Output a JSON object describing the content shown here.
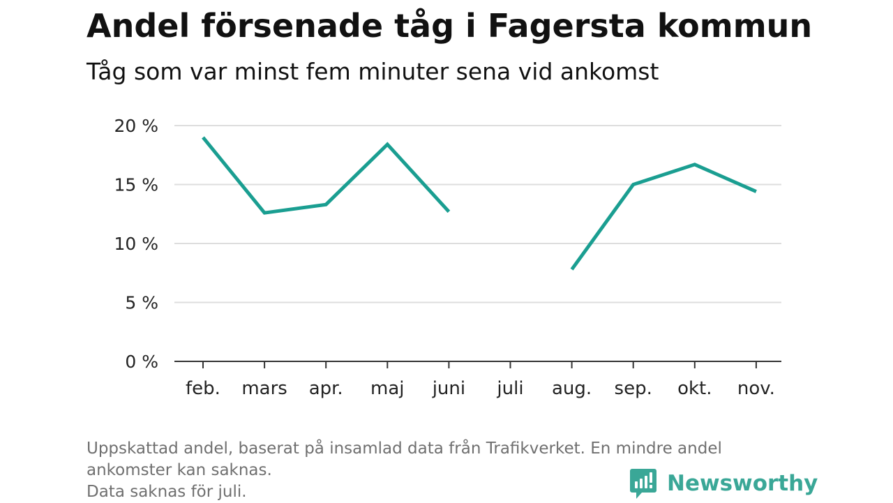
{
  "title": "Andel försenade tåg i Fagersta kommun",
  "subtitle": "Tåg som var minst fem minuter sena vid ankomst",
  "chart_data": {
    "type": "line",
    "title": "Andel försenade tåg i Fagersta kommun",
    "subtitle": "Tåg som var minst fem minuter sena vid ankomst",
    "xlabel": "",
    "ylabel": "",
    "categories": [
      "feb.",
      "mars",
      "apr.",
      "maj",
      "juni",
      "juli",
      "aug.",
      "sep.",
      "okt.",
      "nov."
    ],
    "series": [
      {
        "values": [
          19.0,
          12.6,
          13.3,
          18.4,
          12.7,
          null,
          7.8,
          15.0,
          16.7,
          14.4
        ]
      }
    ],
    "ylim": [
      0,
      20
    ],
    "yticks": [
      0,
      5,
      10,
      15,
      20
    ],
    "ytick_labels": [
      "0 %",
      "5 %",
      "10 %",
      "15 %",
      "20 %"
    ],
    "grid": "horizontal",
    "line_color": "#1a9e91"
  },
  "footnote": {
    "line1": "Uppskattad andel, baserat på insamlad data från Trafikverket. En mindre andel ankomster kan saknas.",
    "line2": "Data saknas för juli."
  },
  "brand": {
    "name": "Newsworthy",
    "logo_icon": "newsworthy-logo-icon",
    "color": "#3aa797"
  }
}
